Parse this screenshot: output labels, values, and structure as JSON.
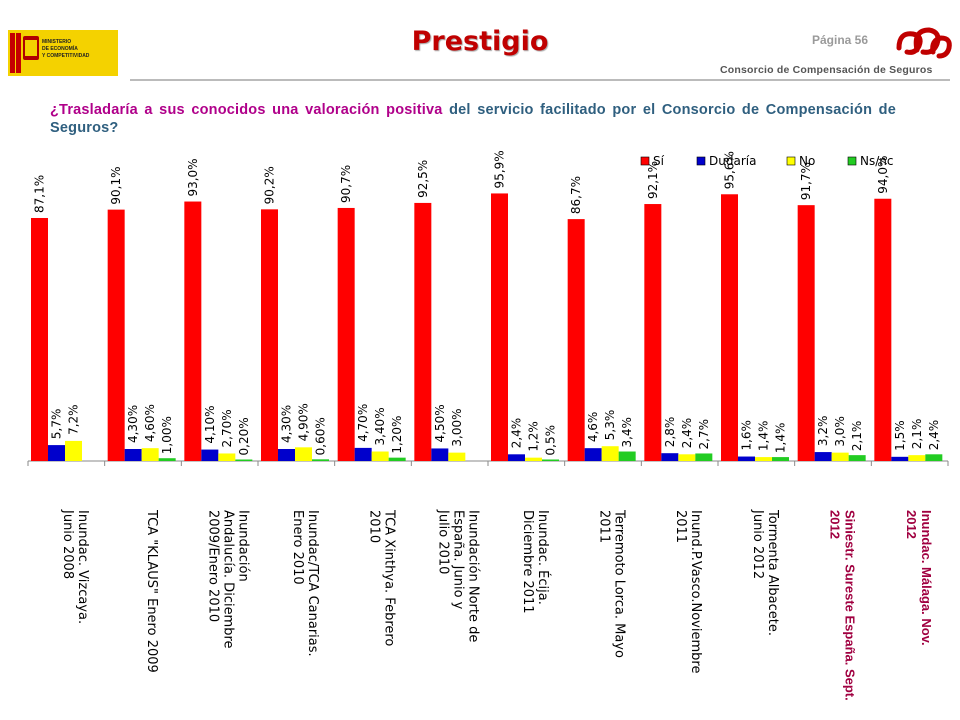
{
  "header": {
    "title": "Prestigio",
    "page_label": "Página 56",
    "org_name": "Consorcio de Compensación de Seguros",
    "ministry_logo_text": [
      "MINISTERIO",
      "DE ECONOMÍA",
      "Y COMPETITIVIDAD"
    ]
  },
  "question": {
    "part1": "¿Trasladaría a sus conocidos una valoración positiva",
    "part2": " del servicio facilitado por el Consorcio de Compensación de Seguros?"
  },
  "colors": {
    "si": "#ff0000",
    "dudaria": "#0000cc",
    "no": "#ffff00",
    "nsnc": "#22cc22",
    "label_dark": "#000000",
    "label_highlight": "#a00040"
  },
  "chart_data": {
    "type": "bar",
    "title": "",
    "xlabel": "",
    "ylabel": "",
    "ylim": [
      0,
      100
    ],
    "legend_position": "top-right",
    "categories": [
      "Inundac. Vizcaya. Junio 2008",
      "TCA \"KLAUS\" Enero 2009",
      "Inundación Andalucía. Diciembre 2009/Enero 2010",
      "Inundac/TCA Canarias. Enero 2010",
      "TCA Xinthya. Febrero 2010",
      "Inundación Norte de España. Junio y Julio 2010",
      "Inundac. Écija. Diciembre 2011",
      "Terremoto Lorca. Mayo 2011",
      "Inund.P.Vasco.Noviembre 2011",
      "Tormenta Albacete. Junio 2012",
      "Siniestr. Sureste España. Sept. 2012",
      "Inundac. Málaga. Nov. 2012"
    ],
    "highlighted_categories": [
      10,
      11
    ],
    "series": [
      {
        "name": "Sí",
        "values": [
          87.1,
          90.1,
          93.0,
          90.2,
          90.7,
          92.5,
          95.9,
          86.7,
          92.1,
          95.6,
          91.7,
          94.0
        ],
        "labels": [
          "87,1%",
          "90,1%",
          "93,0%",
          "90,2%",
          "90,7%",
          "92,5%",
          "95,9%",
          "86,7%",
          "92,1%",
          "95,6%",
          "91,7%",
          "94,0%"
        ]
      },
      {
        "name": "Dudaría",
        "values": [
          5.7,
          4.3,
          4.1,
          4.3,
          4.7,
          4.5,
          2.4,
          4.6,
          2.8,
          1.6,
          3.2,
          1.5
        ],
        "labels": [
          "5,7%",
          "4,30%",
          "4,10%",
          "4,30%",
          "4,70%",
          "4,50%",
          "2,4%",
          "4,6%",
          "2,8%",
          "1,6%",
          "3,2%",
          "1,5%"
        ]
      },
      {
        "name": "No",
        "values": [
          7.2,
          4.6,
          2.7,
          4.9,
          3.4,
          3.0,
          1.2,
          5.3,
          2.4,
          1.4,
          3.0,
          2.1
        ],
        "labels": [
          "7,2%",
          "4,60%",
          "2,70%",
          "4,90%",
          "3,40%",
          "3,00%",
          "1,2%",
          "5,3%",
          "2,4%",
          "1,4%",
          "3,0%",
          "2,1%"
        ]
      },
      {
        "name": "Ns/nc",
        "values": [
          null,
          1.0,
          0.2,
          0.6,
          1.2,
          null,
          0.5,
          3.4,
          2.7,
          1.4,
          2.1,
          2.4
        ],
        "labels": [
          "",
          "1,00%",
          "0,20%",
          "0,60%",
          "1,20%",
          "",
          "0,5%",
          "3,4%",
          "2,7%",
          "1,4%",
          "2,1%",
          "2,4%"
        ]
      }
    ]
  }
}
